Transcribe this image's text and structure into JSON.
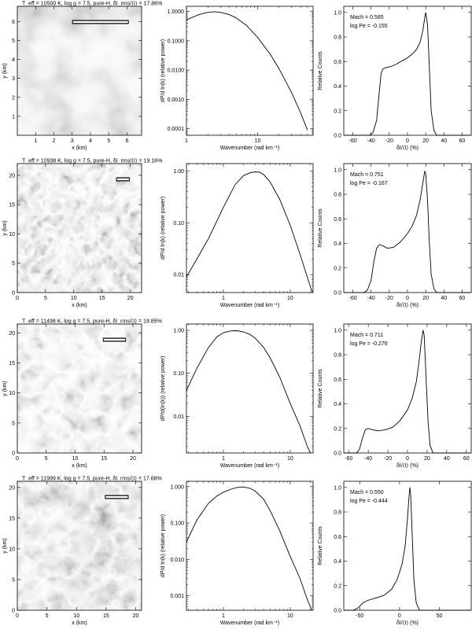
{
  "rows": [
    {
      "title": "T_eff = 10500 K, log g = 7.5, pure-H, δI_rms/⟨I⟩ = 17.86%",
      "image": {
        "xlabel": "x (km)",
        "ylabel": "y (km)",
        "xlim": [
          0,
          6.8
        ],
        "ylim": [
          0,
          6.8
        ],
        "xticks": [
          "1",
          "2",
          "3",
          "4",
          "5",
          "6"
        ],
        "xtick_values": [
          1,
          2,
          3,
          4,
          5,
          6
        ],
        "yticks": [
          "1",
          "2",
          "3",
          "4",
          "5",
          "6"
        ],
        "ytick_values": [
          1,
          2,
          3,
          4,
          5,
          6
        ],
        "style": "large",
        "scale_bar": [
          3.0,
          6.1
        ]
      },
      "spectrum": {
        "xlabel": "Wavenumber (rad km⁻¹)",
        "ylabel": "dP/d ln(k) (relative power)",
        "xlim": [
          1,
          60
        ],
        "ylim": [
          6e-05,
          1.5
        ],
        "xticks": [
          "1",
          "10"
        ],
        "xtick_values": [
          1,
          10
        ],
        "yticks": [
          "1.0000",
          "0.1000",
          "0.0100",
          "0.0010",
          "0.0001"
        ],
        "ytick_values": [
          1,
          0.1,
          0.01,
          0.001,
          0.0001
        ],
        "curve": [
          [
            1,
            0.52
          ],
          [
            1.5,
            0.78
          ],
          [
            2,
            0.93
          ],
          [
            2.5,
            0.98
          ],
          [
            3,
            0.93
          ],
          [
            4,
            0.78
          ],
          [
            5,
            0.6
          ],
          [
            7,
            0.33
          ],
          [
            10,
            0.13
          ],
          [
            15,
            0.035
          ],
          [
            20,
            0.011
          ],
          [
            30,
            0.0017
          ],
          [
            40,
            0.00035
          ],
          [
            50,
            9e-05
          ]
        ]
      },
      "histogram": {
        "xlabel": "δI/⟨I⟩ (%)",
        "ylabel": "Relative Counts",
        "xlim": [
          -70,
          70
        ],
        "ylim": [
          0,
          1.05
        ],
        "xticks": [
          "-60",
          "-40",
          "-20",
          "0",
          "20",
          "40",
          "60"
        ],
        "xtick_values": [
          -60,
          -40,
          -20,
          0,
          20,
          40,
          60
        ],
        "yticks": [
          "0.0",
          "0.2",
          "0.4",
          "0.6",
          "0.8",
          "1.0"
        ],
        "ytick_values": [
          0,
          0.2,
          0.4,
          0.6,
          0.8,
          1
        ],
        "mach": "Mach = 0.585",
        "logpe": "log Pe = -0.155",
        "curve": [
          [
            -70,
            0
          ],
          [
            -42,
            0
          ],
          [
            -38,
            0.02
          ],
          [
            -34,
            0.12
          ],
          [
            -31,
            0.35
          ],
          [
            -29,
            0.5
          ],
          [
            -27,
            0.54
          ],
          [
            -24,
            0.55
          ],
          [
            -18,
            0.56
          ],
          [
            -12,
            0.58
          ],
          [
            -5,
            0.61
          ],
          [
            0,
            0.63
          ],
          [
            5,
            0.66
          ],
          [
            10,
            0.7
          ],
          [
            14,
            0.76
          ],
          [
            17,
            0.86
          ],
          [
            19,
            0.96
          ],
          [
            20,
            1.0
          ],
          [
            22,
            0.9
          ],
          [
            24,
            0.55
          ],
          [
            26,
            0.2
          ],
          [
            29,
            0.04
          ],
          [
            32,
            0
          ],
          [
            70,
            0
          ]
        ]
      }
    },
    {
      "title": "T_eff = 10938 K, log g = 7.5, pure-H, δI_rms/⟨I⟩ = 19.16%",
      "image": {
        "xlabel": "x (km)",
        "ylabel": "y (km)",
        "xlim": [
          0,
          22
        ],
        "ylim": [
          0,
          22
        ],
        "xticks": [
          "0",
          "5",
          "10",
          "15",
          "20"
        ],
        "xtick_values": [
          0,
          5,
          10,
          15,
          20
        ],
        "yticks": [
          "0",
          "5",
          "10",
          "15",
          "20"
        ],
        "ytick_values": [
          0,
          5,
          10,
          15,
          20
        ],
        "style": "fine",
        "scale_bar": [
          17.5,
          19.9
        ]
      },
      "spectrum": {
        "xlabel": "Wavenumber (rad km⁻¹)",
        "ylabel": "dP/d ln(k) (relative power)",
        "xlim": [
          0.28,
          22
        ],
        "ylim": [
          0.0045,
          1.4
        ],
        "xticks": [
          "1",
          "10"
        ],
        "xtick_values": [
          1,
          10
        ],
        "yticks": [
          "1.00",
          "0.10",
          "0.01"
        ],
        "ytick_values": [
          1,
          0.1,
          0.01
        ],
        "curve": [
          [
            0.28,
            0.009
          ],
          [
            0.4,
            0.02
          ],
          [
            0.6,
            0.05
          ],
          [
            1,
            0.2
          ],
          [
            1.5,
            0.55
          ],
          [
            2,
            0.82
          ],
          [
            2.5,
            0.93
          ],
          [
            3,
            0.97
          ],
          [
            3.5,
            0.95
          ],
          [
            4,
            0.86
          ],
          [
            5,
            0.62
          ],
          [
            7,
            0.28
          ],
          [
            10,
            0.09
          ],
          [
            14,
            0.025
          ],
          [
            18,
            0.009
          ],
          [
            22,
            0.004
          ]
        ]
      },
      "histogram": {
        "xlabel": "δI/⟨I⟩ (%)",
        "ylabel": "Relative Counts",
        "xlim": [
          -70,
          70
        ],
        "ylim": [
          0,
          1.05
        ],
        "xticks": [
          "-60",
          "-40",
          "-20",
          "0",
          "20",
          "40",
          "60"
        ],
        "xtick_values": [
          -60,
          -40,
          -20,
          0,
          20,
          40,
          60
        ],
        "yticks": [
          "0.0",
          "0.2",
          "0.4",
          "0.6",
          "0.8",
          "1.0"
        ],
        "ytick_values": [
          0,
          0.2,
          0.4,
          0.6,
          0.8,
          1
        ],
        "mach": "Mach = 0.751",
        "logpe": "log Pe = -0.167",
        "curve": [
          [
            -70,
            0
          ],
          [
            -48,
            0
          ],
          [
            -44,
            0.02
          ],
          [
            -40,
            0.1
          ],
          [
            -37,
            0.25
          ],
          [
            -34,
            0.36
          ],
          [
            -31,
            0.39
          ],
          [
            -27,
            0.38
          ],
          [
            -22,
            0.36
          ],
          [
            -15,
            0.37
          ],
          [
            -8,
            0.41
          ],
          [
            0,
            0.48
          ],
          [
            5,
            0.54
          ],
          [
            10,
            0.63
          ],
          [
            14,
            0.76
          ],
          [
            17,
            0.9
          ],
          [
            19,
            0.99
          ],
          [
            20,
            0.97
          ],
          [
            22,
            0.75
          ],
          [
            24,
            0.4
          ],
          [
            26,
            0.15
          ],
          [
            29,
            0.03
          ],
          [
            32,
            0
          ],
          [
            70,
            0
          ]
        ]
      }
    },
    {
      "title": "T_eff = 11498 K, log g = 7.5, pure-H, δI_rms/⟨I⟩ = 19.85%",
      "image": {
        "xlabel": "x (km)",
        "ylabel": "y (km)",
        "xlim": [
          0,
          21.5
        ],
        "ylim": [
          0,
          21.5
        ],
        "xticks": [
          "0",
          "5",
          "10",
          "15",
          "20"
        ],
        "xtick_values": [
          0,
          5,
          10,
          15,
          20
        ],
        "yticks": [
          "0",
          "5",
          "10",
          "15",
          "20"
        ],
        "ytick_values": [
          0,
          5,
          10,
          15,
          20
        ],
        "style": "medium",
        "scale_bar": [
          14.8,
          18.8
        ]
      },
      "spectrum": {
        "xlabel": "Wavenumber (rad km⁻¹)",
        "ylabel": "dP/d(ln(k)) (relative power)",
        "xlim": [
          0.28,
          22
        ],
        "ylim": [
          0.0014,
          1.4
        ],
        "xticks": [
          "1",
          "10"
        ],
        "xtick_values": [
          1,
          10
        ],
        "yticks": [
          "1.00",
          "0.10",
          "0.01"
        ],
        "ytick_values": [
          1,
          0.1,
          0.01
        ],
        "curve": [
          [
            0.28,
            0.04
          ],
          [
            0.4,
            0.13
          ],
          [
            0.6,
            0.4
          ],
          [
            0.8,
            0.7
          ],
          [
            1,
            0.88
          ],
          [
            1.3,
            0.97
          ],
          [
            1.6,
            0.98
          ],
          [
            2,
            0.92
          ],
          [
            2.5,
            0.8
          ],
          [
            3,
            0.65
          ],
          [
            4,
            0.4
          ],
          [
            5,
            0.23
          ],
          [
            7,
            0.08
          ],
          [
            10,
            0.02
          ],
          [
            14,
            0.006
          ],
          [
            18,
            0.002
          ],
          [
            20,
            0.0014
          ]
        ]
      },
      "histogram": {
        "xlabel": "δI/⟨I⟩ (%)",
        "ylabel": "Relative Counts",
        "xlim": [
          -65,
          65
        ],
        "ylim": [
          0,
          1.05
        ],
        "xticks": [
          "-60",
          "-40",
          "-20",
          "0",
          "20",
          "40",
          "60"
        ],
        "xtick_values": [
          -60,
          -40,
          -20,
          0,
          20,
          40,
          60
        ],
        "yticks": [
          "0.0",
          "0.2",
          "0.4",
          "0.6",
          "0.8",
          "1.0"
        ],
        "ytick_values": [
          0,
          0.2,
          0.4,
          0.6,
          0.8,
          1
        ],
        "mach": "Mach = 0.711",
        "logpe": "log Pe = -0.276",
        "curve": [
          [
            -65,
            0
          ],
          [
            -52,
            0
          ],
          [
            -49,
            0.03
          ],
          [
            -46,
            0.12
          ],
          [
            -43,
            0.19
          ],
          [
            -40,
            0.2
          ],
          [
            -36,
            0.19
          ],
          [
            -30,
            0.18
          ],
          [
            -22,
            0.19
          ],
          [
            -15,
            0.21
          ],
          [
            -8,
            0.26
          ],
          [
            0,
            0.35
          ],
          [
            5,
            0.45
          ],
          [
            9,
            0.58
          ],
          [
            12,
            0.76
          ],
          [
            14,
            0.9
          ],
          [
            16,
            1.0
          ],
          [
            17,
            0.96
          ],
          [
            19,
            0.6
          ],
          [
            21,
            0.25
          ],
          [
            23,
            0.06
          ],
          [
            26,
            0
          ],
          [
            65,
            0
          ]
        ]
      }
    },
    {
      "title": "T_eff = 11999 K, log g = 7.5, pure-H, δI_rms/⟨I⟩ = 17.68%",
      "image": {
        "xlabel": "x (km)",
        "ylabel": "y (km)",
        "xlim": [
          0,
          21
        ],
        "ylim": [
          0,
          21
        ],
        "xticks": [
          "0",
          "5",
          "10",
          "15",
          "20"
        ],
        "xtick_values": [
          0,
          5,
          10,
          15,
          20
        ],
        "yticks": [
          "0",
          "5",
          "10",
          "15",
          "20"
        ],
        "ytick_values": [
          0,
          5,
          10,
          15,
          20
        ],
        "style": "smooth",
        "scale_bar": [
          14.8,
          18.8
        ]
      },
      "spectrum": {
        "xlabel": "Wavenumber (rad km⁻¹)",
        "ylabel": "dP/d ln(k) (relative power)",
        "xlim": [
          0.28,
          22
        ],
        "ylim": [
          0.0004,
          1.4
        ],
        "xticks": [
          "1",
          "10"
        ],
        "xtick_values": [
          1,
          10
        ],
        "yticks": [
          "1.000",
          "0.100",
          "0.010",
          "0.001"
        ],
        "ytick_values": [
          1,
          0.1,
          0.01,
          0.001
        ],
        "curve": [
          [
            0.28,
            0.03
          ],
          [
            0.4,
            0.12
          ],
          [
            0.6,
            0.35
          ],
          [
            0.8,
            0.55
          ],
          [
            1,
            0.7
          ],
          [
            1.3,
            0.85
          ],
          [
            1.6,
            0.95
          ],
          [
            2,
            0.98
          ],
          [
            2.5,
            0.9
          ],
          [
            3,
            0.75
          ],
          [
            4,
            0.45
          ],
          [
            5,
            0.22
          ],
          [
            7,
            0.06
          ],
          [
            10,
            0.012
          ],
          [
            14,
            0.003
          ],
          [
            18,
            0.0008
          ],
          [
            21,
            0.0004
          ]
        ]
      },
      "histogram": {
        "xlabel": "δI/⟨I⟩ (%)",
        "ylabel": "Relative Counts",
        "xlim": [
          -70,
          90
        ],
        "ylim": [
          0,
          1.05
        ],
        "xticks": [
          "-50",
          "0",
          "50"
        ],
        "xtick_values": [
          -50,
          0,
          50
        ],
        "yticks": [
          "0.0",
          "0.2",
          "0.4",
          "0.6",
          "0.8",
          "1.0"
        ],
        "ytick_values": [
          0,
          0.2,
          0.4,
          0.6,
          0.8,
          1
        ],
        "mach": "Mach = 0.550",
        "logpe": "log Pe = -0.444",
        "curve": [
          [
            -70,
            0
          ],
          [
            -58,
            0
          ],
          [
            -52,
            0.02
          ],
          [
            -46,
            0.06
          ],
          [
            -40,
            0.08
          ],
          [
            -30,
            0.1
          ],
          [
            -20,
            0.12
          ],
          [
            -10,
            0.17
          ],
          [
            -3,
            0.25
          ],
          [
            3,
            0.37
          ],
          [
            7,
            0.52
          ],
          [
            10,
            0.75
          ],
          [
            12,
            0.93
          ],
          [
            13,
            1.0
          ],
          [
            14,
            0.95
          ],
          [
            16,
            0.6
          ],
          [
            18,
            0.25
          ],
          [
            21,
            0.06
          ],
          [
            25,
            0
          ],
          [
            90,
            0
          ]
        ]
      }
    }
  ]
}
